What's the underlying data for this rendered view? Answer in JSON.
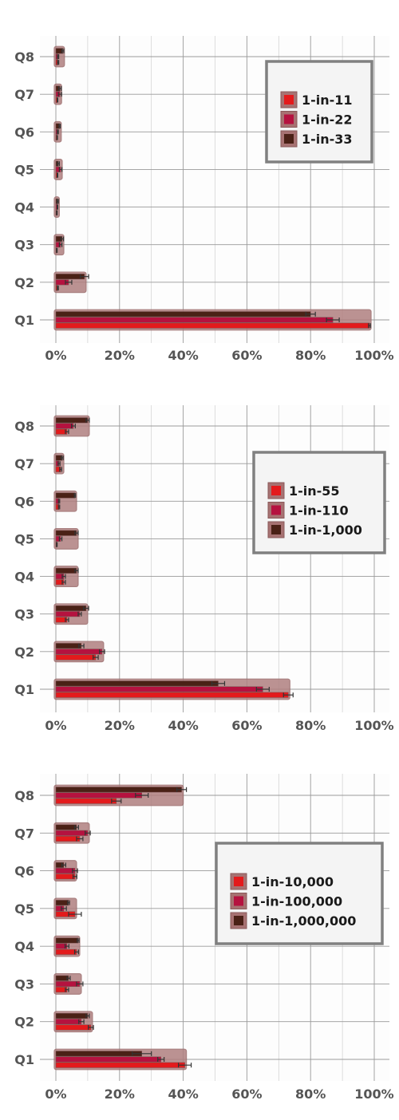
{
  "chart_data": [
    {
      "type": "bar",
      "orientation": "horizontal",
      "categories": [
        "Q1",
        "Q2",
        "Q3",
        "Q4",
        "Q5",
        "Q6",
        "Q7",
        "Q8"
      ],
      "xlim": [
        0,
        100
      ],
      "xticks": [
        "0%",
        "20%",
        "40%",
        "60%",
        "80%",
        "100%"
      ],
      "grid": true,
      "legend_position": "top-right",
      "series": [
        {
          "name": "1-in-11",
          "color": "#e31a1c",
          "values": [
            98.5,
            0.6,
            0.3,
            0.3,
            0.5,
            0.4,
            0.5,
            0.7
          ],
          "errors": [
            0.3,
            0.2,
            0.1,
            0.1,
            0.1,
            0.1,
            0.1,
            0.2
          ]
        },
        {
          "name": "1-in-22",
          "color": "#b5123f",
          "values": [
            87.0,
            4.0,
            1.5,
            0.5,
            1.5,
            0.6,
            1.3,
            0.7
          ],
          "errors": [
            2.0,
            1.0,
            0.4,
            0.1,
            0.4,
            0.2,
            0.5,
            0.2
          ]
        },
        {
          "name": "1-in-33",
          "color": "#4a2116",
          "values": [
            80.0,
            9.0,
            2.0,
            0.6,
            0.8,
            1.2,
            1.3,
            2.2
          ],
          "errors": [
            1.5,
            1.3,
            0.4,
            0.2,
            0.3,
            0.2,
            0.4,
            0.3
          ]
        }
      ]
    },
    {
      "type": "bar",
      "orientation": "horizontal",
      "categories": [
        "Q1",
        "Q2",
        "Q3",
        "Q4",
        "Q5",
        "Q6",
        "Q7",
        "Q8"
      ],
      "xlim": [
        0,
        100
      ],
      "xticks": [
        "0%",
        "20%",
        "40%",
        "60%",
        "80%",
        "100%"
      ],
      "grid": true,
      "legend_position": "top-right",
      "series": [
        {
          "name": "1-in-55",
          "color": "#e31a1c",
          "values": [
            73.0,
            12.5,
            3.5,
            2.5,
            0.3,
            1.0,
            1.5,
            3.5
          ],
          "errors": [
            1.5,
            0.8,
            0.5,
            0.5,
            0.1,
            0.2,
            0.3,
            0.5
          ]
        },
        {
          "name": "1-in-110",
          "color": "#b5123f",
          "values": [
            65.0,
            14.5,
            7.5,
            2.5,
            1.5,
            1.0,
            1.0,
            5.5
          ],
          "errors": [
            2.0,
            0.8,
            0.5,
            0.5,
            0.4,
            0.2,
            0.3,
            0.6
          ]
        },
        {
          "name": "1-in-1,000",
          "color": "#4a2116",
          "values": [
            51.0,
            8.0,
            9.5,
            6.5,
            6.5,
            6.0,
            2.0,
            10.0
          ],
          "errors": [
            2.0,
            0.8,
            0.8,
            0.5,
            0.5,
            0.2,
            0.3,
            0.5
          ]
        }
      ]
    },
    {
      "type": "bar",
      "orientation": "horizontal",
      "categories": [
        "Q1",
        "Q2",
        "Q3",
        "Q4",
        "Q5",
        "Q6",
        "Q7",
        "Q8"
      ],
      "xlim": [
        0,
        100
      ],
      "xticks": [
        "0%",
        "20%",
        "40%",
        "60%",
        "80%",
        "100%"
      ],
      "grid": true,
      "legend_position": "right",
      "series": [
        {
          "name": "1-in-10,000",
          "color": "#e31a1c",
          "values": [
            40.5,
            11.0,
            3.5,
            6.5,
            6.0,
            6.0,
            7.5,
            19.0
          ],
          "errors": [
            2.0,
            0.8,
            0.5,
            0.6,
            2.0,
            0.6,
            1.0,
            1.5
          ]
        },
        {
          "name": "1-in-100,000",
          "color": "#b5123f",
          "values": [
            33.0,
            8.0,
            7.5,
            3.5,
            2.5,
            6.0,
            10.0,
            27.0
          ],
          "errors": [
            1.0,
            0.8,
            1.0,
            0.6,
            0.8,
            0.8,
            0.8,
            2.0
          ]
        },
        {
          "name": "1-in-1,000,000",
          "color": "#4a2116",
          "values": [
            27.0,
            10.0,
            4.0,
            7.0,
            4.0,
            2.5,
            6.5,
            39.5
          ],
          "errors": [
            3.0,
            0.5,
            0.5,
            0.3,
            0.3,
            0.6,
            0.6,
            1.5
          ]
        }
      ]
    }
  ]
}
